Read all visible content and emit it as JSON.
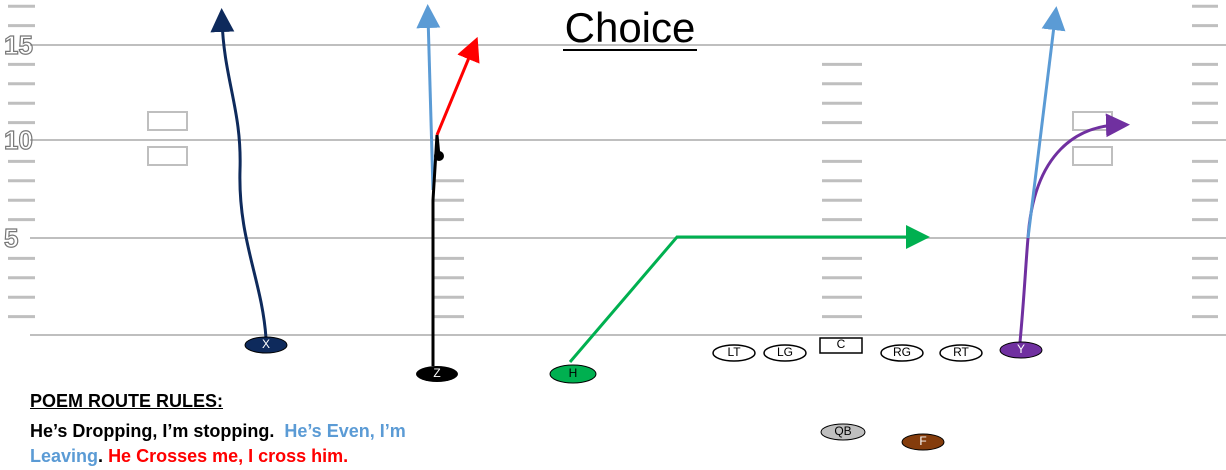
{
  "title": "Choice",
  "yard_numbers": [
    "15",
    "10",
    "5"
  ],
  "players": {
    "x": "X",
    "z": "Z",
    "h": "H",
    "lt": "LT",
    "lg": "LG",
    "c": "C",
    "rg": "RG",
    "rt": "RT",
    "y": "Y",
    "qb": "QB",
    "f": "F"
  },
  "rules": {
    "heading": "POEM ROUTE RULES:",
    "segments": [
      "He’s Dropping, I’m stopping.",
      "He’s Even, I’m Leaving",
      ".",
      "He Crosses me, I cross him."
    ]
  }
}
